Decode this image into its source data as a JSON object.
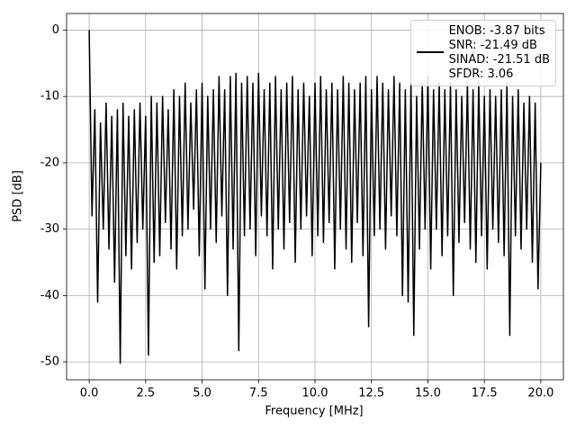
{
  "chart_data": {
    "type": "line",
    "xlabel": "Frequency [MHz]",
    "ylabel": "PSD [dB]",
    "x": [
      0,
      0.125,
      0.25,
      0.375,
      0.5,
      0.625,
      0.75,
      0.875,
      1,
      1.125,
      1.25,
      1.375,
      1.5,
      1.625,
      1.75,
      1.875,
      2,
      2.125,
      2.25,
      2.375,
      2.5,
      2.625,
      2.75,
      2.875,
      3,
      3.125,
      3.25,
      3.375,
      3.5,
      3.625,
      3.75,
      3.875,
      4,
      4.125,
      4.25,
      4.375,
      4.5,
      4.625,
      4.75,
      4.875,
      5,
      5.125,
      5.25,
      5.375,
      5.5,
      5.625,
      5.75,
      5.875,
      6,
      6.125,
      6.25,
      6.375,
      6.5,
      6.625,
      6.75,
      6.875,
      7,
      7.125,
      7.25,
      7.375,
      7.5,
      7.625,
      7.75,
      7.875,
      8,
      8.125,
      8.25,
      8.375,
      8.5,
      8.625,
      8.75,
      8.875,
      9,
      9.125,
      9.25,
      9.375,
      9.5,
      9.625,
      9.75,
      9.875,
      10,
      10.125,
      10.25,
      10.375,
      10.5,
      10.625,
      10.75,
      10.875,
      11,
      11.125,
      11.25,
      11.375,
      11.5,
      11.625,
      11.75,
      11.875,
      12,
      12.125,
      12.25,
      12.375,
      12.5,
      12.625,
      12.75,
      12.875,
      13,
      13.125,
      13.25,
      13.375,
      13.5,
      13.625,
      13.75,
      13.875,
      14,
      14.125,
      14.25,
      14.375,
      14.5,
      14.625,
      14.75,
      14.875,
      15,
      15.125,
      15.25,
      15.375,
      15.5,
      15.625,
      15.75,
      15.875,
      16,
      16.125,
      16.25,
      16.375,
      16.5,
      16.625,
      16.75,
      16.875,
      17,
      17.125,
      17.25,
      17.375,
      17.5,
      17.625,
      17.75,
      17.875,
      18,
      18.125,
      18.25,
      18.375,
      18.5,
      18.625,
      18.75,
      18.875,
      19,
      19.125,
      19.25,
      19.375,
      19.5,
      19.625,
      19.75,
      19.875,
      20
    ],
    "series": [
      {
        "name": "ENOB: -3.87 bits\nSNR: -21.49 dB\nSINAD: -21.51 dB\nSFDR: 3.06",
        "color": "#000000",
        "values": [
          0,
          -28,
          -12,
          -41,
          -14,
          -30,
          -11,
          -33,
          -13,
          -38,
          -12,
          -50.2,
          -11,
          -34,
          -13,
          -36,
          -12,
          -32,
          -11,
          -30,
          -13,
          -49,
          -10,
          -35,
          -11,
          -34,
          -10,
          -29,
          -12,
          -33,
          -9,
          -36,
          -10,
          -31,
          -8,
          -30,
          -11,
          -27,
          -9,
          -34,
          -8,
          -39,
          -10,
          -30,
          -9,
          -32,
          -7,
          -28,
          -9,
          -40,
          -7,
          -33,
          -6.5,
          -48.3,
          -8,
          -31,
          -7,
          -30,
          -8,
          -34,
          -6.5,
          -28,
          -9,
          -31,
          -8,
          -36,
          -7,
          -30,
          -9,
          -33,
          -8,
          -29,
          -7,
          -35,
          -9,
          -30,
          -8,
          -28,
          -10,
          -34,
          -8,
          -31,
          -7,
          -32,
          -9,
          -29,
          -8,
          -36,
          -9,
          -30,
          -7,
          -33,
          -8,
          -35,
          -9,
          -29,
          -8,
          -34,
          -7,
          -44.7,
          -9,
          -31,
          -7,
          -30,
          -8,
          -33,
          -9,
          -28,
          -7,
          -31,
          -8,
          -40,
          -9,
          -41,
          -8,
          -46,
          -10,
          -33,
          -8,
          -30,
          -7,
          -36,
          -9,
          -30,
          -8,
          -34,
          -9,
          -31,
          -8,
          -40,
          -9,
          -32,
          -10,
          -29,
          -8,
          -33,
          -9,
          -35,
          -8,
          -31,
          -10,
          -36,
          -9,
          -30,
          -10,
          -32,
          -9,
          -34,
          -8,
          -46,
          -10,
          -31,
          -9,
          -33,
          -11,
          -30,
          -10,
          -35,
          -11,
          -39,
          -20
        ]
      }
    ],
    "xlim": [
      -1,
      21
    ],
    "ylim": [
      -52.7,
      2.5
    ],
    "xticks": [
      {
        "value": 0,
        "label": "0.0"
      },
      2.5,
      {
        "value": 5,
        "label": "5.0"
      },
      7.5,
      {
        "value": 10,
        "label": "10.0"
      },
      12.5,
      {
        "value": 15,
        "label": "15.0"
      },
      17.5,
      {
        "value": 20,
        "label": "20.0"
      }
    ],
    "yticks": [
      0,
      -10,
      -20,
      -30,
      -40,
      -50
    ],
    "grid": true,
    "legend": "upper right"
  }
}
